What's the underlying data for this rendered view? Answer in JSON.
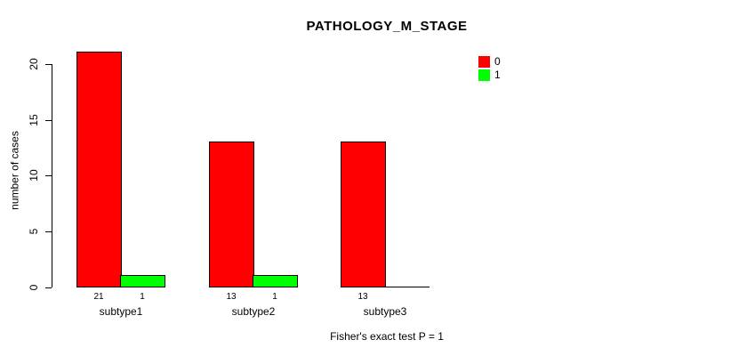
{
  "chart_data": {
    "type": "bar",
    "subtype": "grouped",
    "title": "PATHOLOGY_M_STAGE",
    "ylabel": "number of cases",
    "xlabel": "",
    "annotation": "Fisher's exact test P = 1",
    "categories": [
      "subtype1",
      "subtype2",
      "subtype3"
    ],
    "series": [
      {
        "name": "0",
        "color": "#FF0000",
        "values": [
          21,
          13,
          13
        ]
      },
      {
        "name": "1",
        "color": "#00FF00",
        "values": [
          1,
          1,
          0
        ]
      }
    ],
    "bar_count_labels": [
      [
        "21",
        "13",
        "13"
      ],
      [
        "1",
        "1",
        ""
      ]
    ],
    "yticks": [
      0,
      5,
      10,
      15,
      20
    ],
    "ylim": [
      0,
      21
    ],
    "grid": false,
    "legend_position": "right-top",
    "background": "#FFFFFF",
    "bar_border_color": "#000000"
  }
}
